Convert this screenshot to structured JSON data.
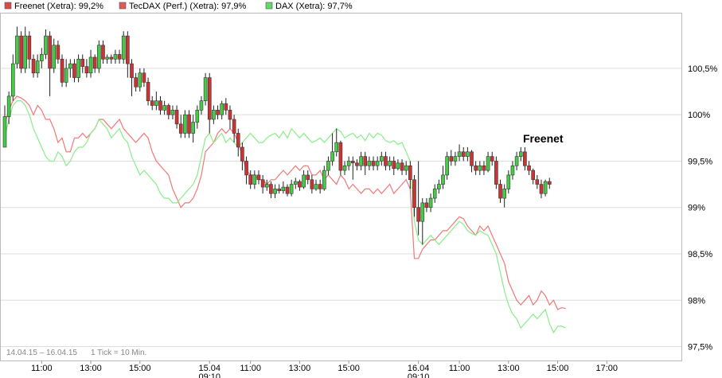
{
  "chart_data": {
    "type": "candlestick+line",
    "title": "",
    "annotation": "Freenet",
    "footnote_range": "14.04.15 – 16.04.15",
    "footnote_tick": "1 Tick = 10 Min.",
    "legend": [
      {
        "label": "Freenet (Xetra): 99,2%",
        "color": "#d94b4b"
      },
      {
        "label": "TecDAX (Perf.) (Xetra): 97,9%",
        "color": "#e05a5a"
      },
      {
        "label": "DAX (Xetra): 97,7%",
        "color": "#63d863"
      }
    ],
    "colors": {
      "up": "#44cc44",
      "down": "#cc3333",
      "tecdax": "#f07878",
      "dax": "#88ee88",
      "grid": "#dddddd",
      "frame": "#bbbbbb"
    },
    "y_axis": {
      "min": 97.35,
      "max": 101.1,
      "ticks": [
        100.5,
        100.0,
        99.5,
        99.0,
        98.5,
        98.0,
        97.5
      ],
      "tick_labels": [
        "100,5%",
        "100%",
        "99,5%",
        "99%",
        "98,5%",
        "98%",
        "97,5%"
      ]
    },
    "x_axis": {
      "min": 0,
      "max": 145,
      "ticks": [
        {
          "x": 9,
          "label": "11:00",
          "sub": ""
        },
        {
          "x": 21,
          "label": "13:00",
          "sub": ""
        },
        {
          "x": 33,
          "label": "15:00",
          "sub": ""
        },
        {
          "x": 50,
          "label": "15.04",
          "sub": "09:10"
        },
        {
          "x": 60,
          "label": "11:00",
          "sub": ""
        },
        {
          "x": 72,
          "label": "13:00",
          "sub": ""
        },
        {
          "x": 84,
          "label": "15:00",
          "sub": ""
        },
        {
          "x": 101,
          "label": "16.04",
          "sub": "09:10"
        },
        {
          "x": 111,
          "label": "11:00",
          "sub": ""
        },
        {
          "x": 123,
          "label": "13:00",
          "sub": ""
        },
        {
          "x": 135,
          "label": "15:00",
          "sub": ""
        },
        {
          "x": 147,
          "label": "17:00",
          "sub": ""
        }
      ]
    },
    "candles": [
      [
        99.65,
        99.98,
        100.1,
        99.65
      ],
      [
        99.98,
        100.2,
        100.25,
        99.9
      ],
      [
        100.2,
        100.55,
        100.65,
        100.15
      ],
      [
        100.55,
        100.85,
        100.95,
        100.5
      ],
      [
        100.85,
        100.5,
        100.9,
        100.45
      ],
      [
        100.5,
        100.85,
        100.95,
        100.45
      ],
      [
        100.85,
        100.6,
        100.9,
        100.5
      ],
      [
        100.6,
        100.45,
        100.65,
        100.4
      ],
      [
        100.45,
        100.58,
        100.65,
        100.4
      ],
      [
        100.58,
        100.65,
        100.72,
        100.5
      ],
      [
        100.65,
        100.85,
        100.92,
        100.6
      ],
      [
        100.85,
        100.5,
        100.9,
        100.2
      ],
      [
        100.5,
        100.75,
        100.82,
        100.45
      ],
      [
        100.75,
        100.6,
        100.8,
        100.55
      ],
      [
        100.6,
        100.35,
        100.65,
        100.3
      ],
      [
        100.35,
        100.5,
        100.6,
        100.3
      ],
      [
        100.5,
        100.55,
        100.6,
        100.4
      ],
      [
        100.55,
        100.4,
        100.6,
        100.35
      ],
      [
        100.4,
        100.6,
        100.65,
        100.35
      ],
      [
        100.6,
        100.52,
        100.65,
        100.45
      ],
      [
        100.52,
        100.45,
        100.6,
        100.4
      ],
      [
        100.45,
        100.62,
        100.7,
        100.4
      ],
      [
        100.62,
        100.5,
        100.65,
        100.45
      ],
      [
        100.5,
        100.75,
        100.8,
        100.45
      ],
      [
        100.75,
        100.6,
        100.8,
        100.55
      ],
      [
        100.6,
        100.62,
        100.65,
        100.55
      ],
      [
        100.62,
        100.6,
        100.65,
        100.55
      ],
      [
        100.6,
        100.65,
        100.7,
        100.55
      ],
      [
        100.65,
        100.6,
        100.7,
        100.55
      ],
      [
        100.6,
        100.85,
        100.9,
        100.55
      ],
      [
        100.85,
        100.55,
        100.9,
        100.4
      ],
      [
        100.55,
        100.4,
        100.6,
        100.2
      ],
      [
        100.4,
        100.3,
        100.45,
        100.25
      ],
      [
        100.3,
        100.45,
        100.5,
        100.25
      ],
      [
        100.45,
        100.35,
        100.5,
        100.3
      ],
      [
        100.35,
        100.15,
        100.4,
        100.1
      ],
      [
        100.15,
        100.1,
        100.2,
        100.05
      ],
      [
        100.1,
        100.15,
        100.25,
        100.05
      ],
      [
        100.15,
        100.05,
        100.2,
        100.0
      ],
      [
        100.05,
        100.1,
        100.15,
        100.0
      ],
      [
        100.1,
        100.0,
        100.12,
        99.95
      ],
      [
        100.0,
        100.05,
        100.1,
        99.95
      ],
      [
        100.05,
        99.9,
        100.1,
        99.85
      ],
      [
        99.9,
        99.8,
        100.0,
        99.75
      ],
      [
        99.8,
        100.0,
        100.05,
        99.75
      ],
      [
        100.0,
        99.8,
        100.05,
        99.75
      ],
      [
        99.8,
        99.92,
        100.0,
        99.7
      ],
      [
        99.92,
        100.05,
        100.1,
        99.85
      ],
      [
        100.05,
        100.15,
        100.2,
        100.0
      ],
      [
        100.15,
        100.4,
        100.45,
        100.1
      ],
      [
        100.4,
        99.95,
        100.45,
        99.8
      ],
      [
        99.95,
        100.05,
        100.1,
        99.9
      ],
      [
        100.05,
        100.0,
        100.1,
        99.95
      ],
      [
        100.0,
        100.12,
        100.15,
        99.95
      ],
      [
        100.12,
        100.05,
        100.18,
        100.0
      ],
      [
        100.05,
        99.95,
        100.1,
        99.85
      ],
      [
        99.95,
        99.8,
        100.0,
        99.7
      ],
      [
        99.8,
        99.65,
        99.85,
        99.55
      ],
      [
        99.65,
        99.5,
        99.7,
        99.4
      ],
      [
        99.5,
        99.35,
        99.55,
        99.25
      ],
      [
        99.35,
        99.25,
        99.4,
        99.2
      ],
      [
        99.25,
        99.35,
        99.4,
        99.2
      ],
      [
        99.35,
        99.3,
        99.4,
        99.25
      ],
      [
        99.3,
        99.22,
        99.35,
        99.15
      ],
      [
        99.22,
        99.25,
        99.3,
        99.18
      ],
      [
        99.25,
        99.15,
        99.28,
        99.1
      ],
      [
        99.15,
        99.2,
        99.25,
        99.1
      ],
      [
        99.2,
        99.18,
        99.25,
        99.15
      ],
      [
        99.18,
        99.22,
        99.28,
        99.15
      ],
      [
        99.22,
        99.15,
        99.25,
        99.12
      ],
      [
        99.15,
        99.25,
        99.3,
        99.12
      ],
      [
        99.25,
        99.28,
        99.32,
        99.2
      ],
      [
        99.28,
        99.22,
        99.3,
        99.18
      ],
      [
        99.22,
        99.35,
        99.4,
        99.2
      ],
      [
        99.35,
        99.3,
        99.4,
        99.25
      ],
      [
        99.3,
        99.2,
        99.35,
        99.15
      ],
      [
        99.2,
        99.25,
        99.3,
        99.18
      ],
      [
        99.25,
        99.2,
        99.3,
        99.15
      ],
      [
        99.2,
        99.4,
        99.45,
        99.18
      ],
      [
        99.4,
        99.5,
        99.55,
        99.35
      ],
      [
        99.5,
        99.6,
        99.8,
        99.45
      ],
      [
        99.6,
        99.7,
        99.85,
        99.55
      ],
      [
        99.7,
        99.4,
        99.72,
        99.35
      ],
      [
        99.4,
        99.45,
        99.5,
        99.35
      ],
      [
        99.45,
        99.5,
        99.55,
        99.4
      ],
      [
        99.5,
        99.48,
        99.55,
        99.3
      ],
      [
        99.48,
        99.45,
        99.52,
        99.4
      ],
      [
        99.45,
        99.55,
        99.6,
        99.4
      ],
      [
        99.55,
        99.45,
        99.6,
        99.35
      ],
      [
        99.45,
        99.5,
        99.55,
        99.4
      ],
      [
        99.5,
        99.45,
        99.55,
        99.4
      ],
      [
        99.45,
        99.5,
        99.55,
        99.4
      ],
      [
        99.5,
        99.55,
        99.6,
        99.45
      ],
      [
        99.55,
        99.45,
        99.6,
        99.4
      ],
      [
        99.45,
        99.5,
        99.55,
        99.4
      ],
      [
        99.5,
        99.42,
        99.55,
        99.35
      ],
      [
        99.42,
        99.48,
        99.52,
        99.4
      ],
      [
        99.48,
        99.4,
        99.52,
        99.35
      ],
      [
        99.4,
        99.45,
        99.5,
        99.35
      ],
      [
        99.45,
        99.3,
        99.5,
        99.2
      ],
      [
        99.3,
        99.0,
        99.35,
        98.9
      ],
      [
        99.0,
        98.85,
        99.5,
        98.7
      ],
      [
        98.85,
        99.05,
        99.1,
        98.6
      ],
      [
        99.05,
        99.0,
        99.1,
        98.95
      ],
      [
        99.0,
        99.1,
        99.15,
        98.95
      ],
      [
        99.1,
        99.2,
        99.25,
        99.05
      ],
      [
        99.2,
        99.25,
        99.3,
        99.15
      ],
      [
        99.25,
        99.35,
        99.45,
        99.2
      ],
      [
        99.35,
        99.55,
        99.6,
        99.3
      ],
      [
        99.55,
        99.5,
        99.62,
        99.45
      ],
      [
        99.5,
        99.55,
        99.6,
        99.45
      ],
      [
        99.55,
        99.6,
        99.68,
        99.5
      ],
      [
        99.6,
        99.55,
        99.65,
        99.5
      ],
      [
        99.55,
        99.6,
        99.65,
        99.5
      ],
      [
        99.6,
        99.45,
        99.62,
        99.38
      ],
      [
        99.45,
        99.4,
        99.5,
        99.35
      ],
      [
        99.4,
        99.45,
        99.5,
        99.35
      ],
      [
        99.45,
        99.4,
        99.5,
        99.35
      ],
      [
        99.4,
        99.55,
        99.6,
        99.38
      ],
      [
        99.55,
        99.5,
        99.6,
        99.45
      ],
      [
        99.5,
        99.25,
        99.55,
        99.2
      ],
      [
        99.25,
        99.1,
        99.3,
        99.05
      ],
      [
        99.1,
        99.2,
        99.25,
        99.0
      ],
      [
        99.2,
        99.35,
        99.4,
        99.15
      ],
      [
        99.35,
        99.45,
        99.5,
        99.3
      ],
      [
        99.45,
        99.55,
        99.6,
        99.4
      ],
      [
        99.55,
        99.6,
        99.65,
        99.5
      ],
      [
        99.6,
        99.45,
        99.65,
        99.4
      ],
      [
        99.45,
        99.4,
        99.5,
        99.35
      ],
      [
        99.4,
        99.3,
        99.42,
        99.25
      ],
      [
        99.3,
        99.25,
        99.35,
        99.2
      ],
      [
        99.25,
        99.15,
        99.3,
        99.1
      ],
      [
        99.15,
        99.28,
        99.3,
        99.12
      ],
      [
        99.28,
        99.25,
        99.32,
        99.2
      ]
    ],
    "series": [
      {
        "key": "tecdax",
        "values": [
          99.9,
          100.05,
          100.15,
          100.2,
          100.18,
          100.15,
          100.1,
          100.0,
          100.1,
          100.05,
          99.95,
          99.95,
          99.85,
          99.7,
          99.75,
          99.6,
          99.6,
          99.75,
          99.75,
          99.8,
          99.75,
          99.8,
          99.85,
          99.95,
          99.95,
          99.9,
          99.85,
          99.9,
          99.95,
          99.85,
          99.8,
          99.75,
          99.7,
          99.75,
          99.8,
          99.75,
          99.6,
          99.5,
          99.45,
          99.4,
          99.35,
          99.2,
          99.1,
          99.0,
          99.05,
          99.05,
          99.1,
          99.2,
          99.35,
          99.6,
          99.65,
          99.7,
          99.8,
          99.85,
          99.8,
          99.85,
          99.8,
          99.7,
          99.55,
          99.4,
          99.35,
          99.35,
          99.3,
          99.3,
          99.25,
          99.3,
          99.3,
          99.35,
          99.4,
          99.35,
          99.4,
          99.45,
          99.4,
          99.45,
          99.45,
          99.35,
          99.35,
          99.4,
          99.3,
          99.35,
          99.3,
          99.25,
          99.35,
          99.3,
          99.2,
          99.25,
          99.2,
          99.15,
          99.2,
          99.2,
          99.15,
          99.2,
          99.15,
          99.2,
          99.25,
          99.15,
          99.2,
          99.25,
          99.3,
          99.2,
          98.45,
          98.45,
          98.55,
          98.6,
          98.65,
          98.65,
          98.7,
          98.75,
          98.75,
          98.8,
          98.85,
          98.9,
          98.88,
          98.8,
          98.75,
          98.7,
          98.8,
          98.75,
          98.8,
          98.7,
          98.6,
          98.5,
          98.4,
          98.2,
          98.1,
          98.0,
          97.95,
          98.0,
          98.05,
          97.95,
          98.0,
          98.1,
          98.05,
          97.95,
          98.0,
          97.9,
          97.92,
          97.91
        ]
      },
      {
        "key": "dax",
        "values": [
          99.75,
          99.95,
          100.1,
          100.15,
          100.15,
          100.1,
          100.0,
          99.85,
          99.75,
          99.65,
          99.55,
          99.5,
          99.5,
          99.6,
          99.55,
          99.45,
          99.5,
          99.6,
          99.65,
          99.65,
          99.7,
          99.8,
          99.85,
          99.95,
          99.9,
          99.85,
          99.75,
          99.8,
          99.85,
          99.75,
          99.7,
          99.55,
          99.45,
          99.35,
          99.4,
          99.35,
          99.3,
          99.25,
          99.15,
          99.1,
          99.1,
          99.05,
          99.05,
          99.1,
          99.15,
          99.2,
          99.25,
          99.35,
          99.55,
          99.75,
          99.8,
          99.7,
          99.75,
          99.8,
          99.7,
          99.75,
          99.7,
          99.65,
          99.7,
          99.75,
          99.8,
          99.75,
          99.7,
          99.7,
          99.75,
          99.78,
          99.8,
          99.75,
          99.82,
          99.75,
          99.85,
          99.8,
          99.75,
          99.8,
          99.75,
          99.7,
          99.72,
          99.75,
          99.7,
          99.75,
          99.8,
          99.85,
          99.82,
          99.75,
          99.78,
          99.8,
          99.75,
          99.78,
          99.72,
          99.8,
          99.75,
          99.8,
          99.78,
          99.72,
          99.7,
          99.72,
          99.68,
          99.7,
          99.6,
          99.5,
          98.85,
          98.65,
          98.6,
          98.65,
          98.7,
          98.65,
          98.6,
          98.65,
          98.7,
          98.75,
          98.8,
          98.85,
          98.82,
          98.75,
          98.72,
          98.7,
          98.75,
          98.72,
          98.7,
          98.6,
          98.5,
          98.3,
          98.1,
          97.95,
          97.85,
          97.8,
          97.7,
          97.75,
          97.8,
          97.85,
          97.8,
          97.85,
          97.9,
          97.75,
          97.65,
          97.72,
          97.72,
          97.7
        ]
      }
    ]
  }
}
